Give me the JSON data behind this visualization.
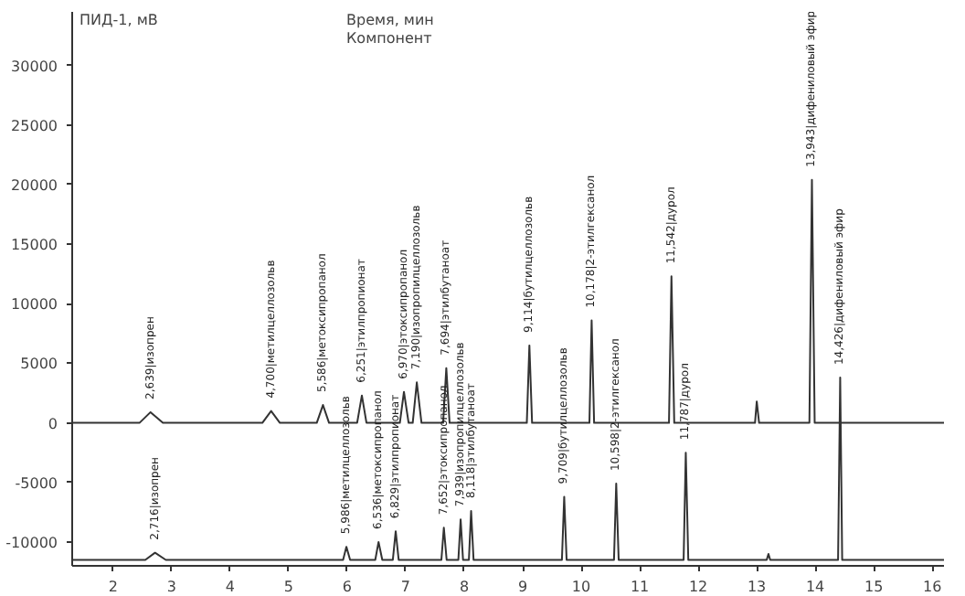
{
  "chart_data": {
    "type": "line",
    "ylabel": "ПИД-1, мВ",
    "xlabel": "Время, мин",
    "xlim": [
      1.3,
      16.2
    ],
    "xticks": [
      2,
      3,
      4,
      5,
      6,
      7,
      8,
      9,
      10,
      11,
      12,
      13,
      14,
      15,
      16
    ],
    "ylim": [
      -12000,
      34500
    ],
    "yticks": [
      -10000,
      -5000,
      0,
      5000,
      10000,
      15000,
      20000,
      25000,
      30000
    ],
    "grid": false,
    "marker": "none",
    "line_style": "solid",
    "series": [
      {
        "color": "#333333",
        "x": [
          1.3,
          2.45,
          2.639,
          2.85,
          4.55,
          4.7,
          4.85,
          5.48,
          5.586,
          5.69,
          6.17,
          6.251,
          6.33,
          6.9,
          6.97,
          7.05,
          7.12,
          7.19,
          7.27,
          7.64,
          7.694,
          7.75,
          9.07,
          9.114,
          9.16,
          10.14,
          10.178,
          10.22,
          11.5,
          11.542,
          11.59,
          12.97,
          13.0,
          13.04,
          13.9,
          13.943,
          13.99,
          16.2
        ],
        "values": [
          0,
          0,
          900,
          0,
          0,
          1000,
          0,
          0,
          1500,
          0,
          0,
          2300,
          0,
          0,
          2600,
          0,
          0,
          3400,
          0,
          0,
          4600,
          0,
          0,
          6500,
          0,
          0,
          8600,
          0,
          0,
          12300,
          0,
          0,
          1800,
          0,
          0,
          20400,
          0,
          0
        ]
      },
      {
        "color": "#333333",
        "x": [
          1.3,
          2.55,
          2.716,
          2.9,
          5.93,
          5.986,
          6.05,
          6.48,
          6.536,
          6.6,
          6.78,
          6.829,
          6.88,
          7.61,
          7.652,
          7.7,
          7.9,
          7.939,
          7.98,
          8.08,
          8.118,
          8.16,
          9.67,
          9.709,
          9.75,
          10.56,
          10.598,
          10.64,
          11.75,
          11.787,
          11.83,
          13.17,
          13.2,
          13.23,
          14.39,
          14.426,
          14.46,
          16.2
        ],
        "values": [
          -11500,
          -11500,
          -10900,
          -11500,
          -11500,
          -10400,
          -11500,
          -11500,
          -10000,
          -11500,
          -11500,
          -9100,
          -11500,
          -11500,
          -8800,
          -11500,
          -11500,
          -8100,
          -11500,
          -11500,
          -7400,
          -11500,
          -11500,
          -6200,
          -11500,
          -11500,
          -5100,
          -11500,
          -11500,
          -2500,
          -11500,
          -11500,
          -11000,
          -11500,
          -11500,
          3800,
          -11500,
          -11500
        ]
      }
    ],
    "annotations": [
      "Компонент",
      {
        "text": "2,639|изопрен",
        "x": 2.639,
        "y": 900
      },
      {
        "text": "4,700|метилцеллозольв",
        "x": 4.7,
        "y": 1000
      },
      {
        "text": "5,586|метоксипропанол",
        "x": 5.586,
        "y": 1500
      },
      {
        "text": "6,251|этилпропионат",
        "x": 6.251,
        "y": 2300
      },
      {
        "text": "6,970|этоксипропанол",
        "x": 6.97,
        "y": 2600
      },
      {
        "text": "7,190|изопропилцеллозольв",
        "x": 7.19,
        "y": 3400
      },
      {
        "text": "7,694|этилбутаноат",
        "x": 7.694,
        "y": 4600
      },
      {
        "text": "9,114|бутилцеллозольв",
        "x": 9.114,
        "y": 6500
      },
      {
        "text": "10,178|2-этилгексанол",
        "x": 10.178,
        "y": 8600
      },
      {
        "text": "11,542|дурол",
        "x": 11.542,
        "y": 12300
      },
      {
        "text": "13,943|дифениловый эфир",
        "x": 13.943,
        "y": 20400
      },
      {
        "text": "2,716|изопрен",
        "x": 2.716,
        "y": -10900
      },
      {
        "text": "5,986|метилцеллозольв",
        "x": 5.986,
        "y": -10400
      },
      {
        "text": "6,536|метоксипропанол",
        "x": 6.536,
        "y": -10000
      },
      {
        "text": "6,829|этилпропионат",
        "x": 6.829,
        "y": -9100
      },
      {
        "text": "7,652|этоксипропанол",
        "x": 7.652,
        "y": -8800
      },
      {
        "text": "7,939|изопропилцеллозольв",
        "x": 7.939,
        "y": -8100
      },
      {
        "text": "8,118|этилбутаноат",
        "x": 8.118,
        "y": -7400
      },
      {
        "text": "9,709|бутилцеллозольв",
        "x": 9.709,
        "y": -6200
      },
      {
        "text": "10,598|2-этилгексанол",
        "x": 10.598,
        "y": -5100
      },
      {
        "text": "11,787|дурол",
        "x": 11.787,
        "y": -2500
      },
      {
        "text": "14,426|дифениловый эфир",
        "x": 14.426,
        "y": 3800
      }
    ]
  }
}
